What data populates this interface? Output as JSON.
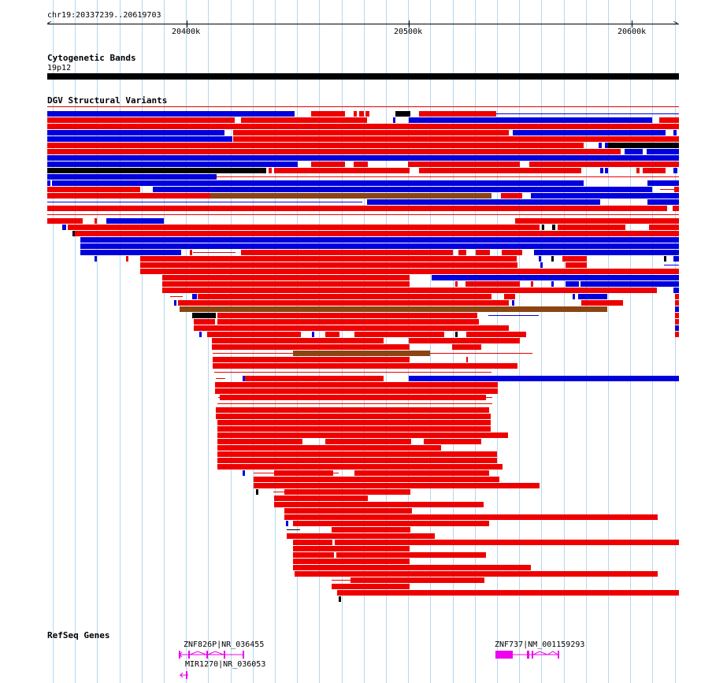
{
  "ruler": {
    "location": "chr19:20337239..20619703",
    "ticks": [
      "20400k",
      "20500k",
      "20600k"
    ]
  },
  "cytoband_track": {
    "title": "Cytogenetic Bands",
    "band": "19p12"
  },
  "dgv_track": {
    "title": "DGV Structural Variants"
  },
  "refseq_track": {
    "title": "RefSeq Genes",
    "genes": [
      {
        "label": "ZNF826P|NR_036455"
      },
      {
        "label": "MIR1270|NR_036053"
      },
      {
        "label": "ZNF737|NM_001159293"
      }
    ]
  },
  "colors": {
    "gain": "#ee0000",
    "loss": "#0000dd",
    "complex": "#000000",
    "inversion": "#8b4513",
    "gene": "#ee00ee",
    "grid": "#b5d8f0"
  }
}
